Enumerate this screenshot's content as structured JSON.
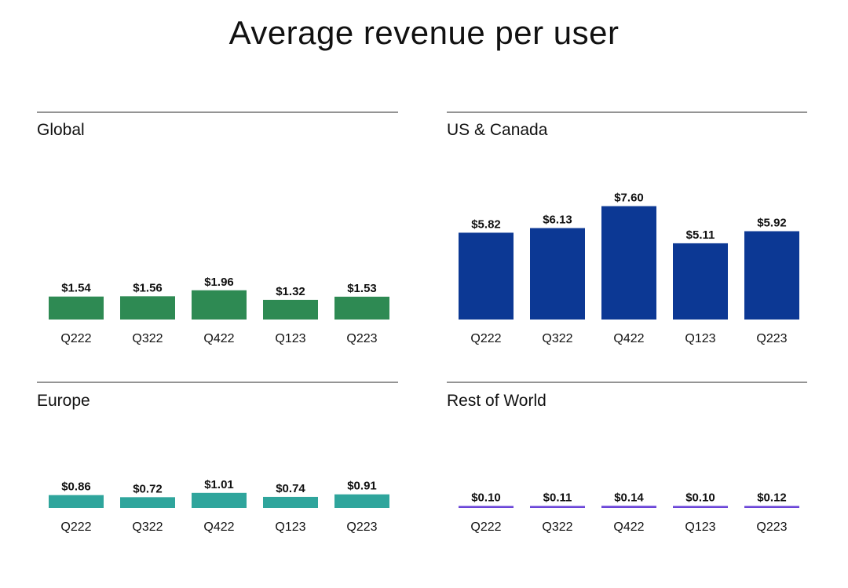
{
  "title": "Average revenue per user",
  "chart_data": [
    {
      "type": "bar",
      "title": "Global",
      "categories": [
        "Q222",
        "Q322",
        "Q422",
        "Q123",
        "Q223"
      ],
      "values": [
        1.54,
        1.56,
        1.96,
        1.32,
        1.53
      ],
      "labels": [
        "$1.54",
        "$1.56",
        "$1.96",
        "$1.32",
        "$1.53"
      ],
      "color": "#2e8a53"
    },
    {
      "type": "bar",
      "title": "US & Canada",
      "categories": [
        "Q222",
        "Q322",
        "Q422",
        "Q123",
        "Q223"
      ],
      "values": [
        5.82,
        6.13,
        7.6,
        5.11,
        5.92
      ],
      "labels": [
        "$5.82",
        "$6.13",
        "$7.60",
        "$5.11",
        "$5.92"
      ],
      "color": "#0c3894"
    },
    {
      "type": "bar",
      "title": "Europe",
      "categories": [
        "Q222",
        "Q322",
        "Q422",
        "Q123",
        "Q223"
      ],
      "values": [
        0.86,
        0.72,
        1.01,
        0.74,
        0.91
      ],
      "labels": [
        "$0.86",
        "$0.72",
        "$1.01",
        "$0.74",
        "$0.91"
      ],
      "color": "#2fa59c"
    },
    {
      "type": "bar",
      "title": "Rest of World",
      "categories": [
        "Q222",
        "Q322",
        "Q422",
        "Q123",
        "Q223"
      ],
      "values": [
        0.1,
        0.11,
        0.14,
        0.1,
        0.12
      ],
      "labels": [
        "$0.10",
        "$0.11",
        "$0.14",
        "$0.10",
        "$0.12"
      ],
      "color": "#6a44d8"
    }
  ]
}
